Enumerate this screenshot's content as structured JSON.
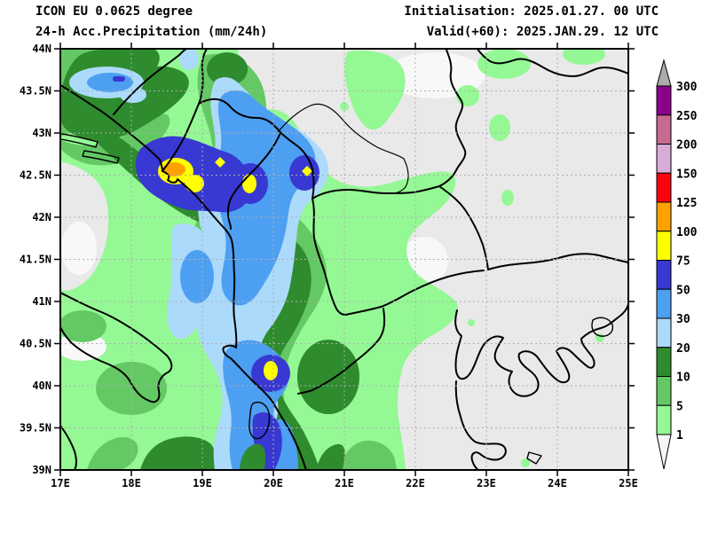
{
  "header": {
    "model": "ICON EU 0.0625 degree",
    "product": "24-h Acc.Precipitation (mm/24h)",
    "initialisation": "Initialisation: 2025.01.27. 00 UTC",
    "valid": "Valid(+60): 2025.JAN.29. 12 UTC"
  },
  "map": {
    "lat_ticks": [
      "44N",
      "43.5N",
      "43N",
      "42.5N",
      "42N",
      "41.5N",
      "41N",
      "40.5N",
      "40N",
      "39.5N",
      "39N"
    ],
    "lon_ticks": [
      "17E",
      "18E",
      "19E",
      "20E",
      "21E",
      "22E",
      "23E",
      "24E",
      "25E"
    ],
    "background_color": "#E9E9E9",
    "grid_color": "#AFAFAF"
  },
  "colorbar": {
    "unit": "mm/24h",
    "boundary_labels": [
      "300",
      "250",
      "200",
      "150",
      "125",
      "100",
      "75",
      "50",
      "30",
      "20",
      "10",
      "5",
      "1"
    ],
    "band_colors_top_to_bottom": [
      "#8B008B",
      "#C76A92",
      "#D9ABD9",
      "#FB0410",
      "#FFA200",
      "#FFFF00",
      "#3838D2",
      "#4D9FF1",
      "#ACDAFB",
      "#2E8B2E",
      "#64C964",
      "#94F894"
    ],
    "above_max_color": "#ACACAC",
    "below_min_color": "#F6F6F6"
  },
  "legend_semantics": {
    "precip_levels_mm": [
      1,
      5,
      10,
      20,
      30,
      50,
      75,
      100,
      125,
      150,
      200,
      250,
      300
    ],
    "light_green": "1-5",
    "medium_green": "5-10",
    "dark_green": "10-20",
    "light_blue": "20-30",
    "medium_blue": "30-50",
    "dark_blue": "50-75",
    "yellow": "75-100",
    "orange": "100-125",
    "red": "125-150",
    "lilac": "150-200",
    "mauve": "200-250",
    "purple": "250-300"
  }
}
